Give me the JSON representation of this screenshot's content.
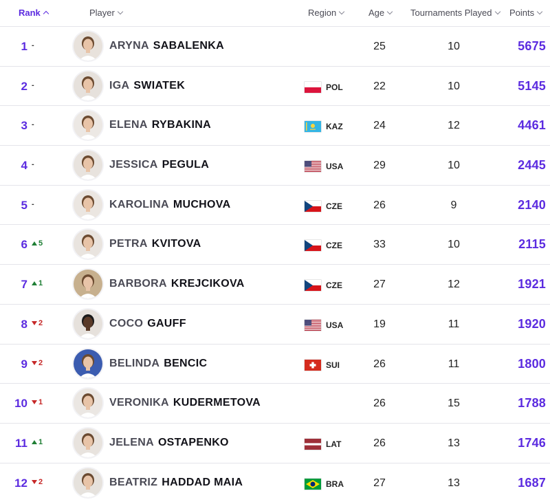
{
  "header": {
    "rank": "Rank",
    "player": "Player",
    "region": "Region",
    "age": "Age",
    "tournaments": "Tournaments Played",
    "points": "Points"
  },
  "rows": [
    {
      "rank": "1",
      "move": "-",
      "move_dir": "same",
      "first": "ARYNA",
      "last": "SABALENKA",
      "region": "",
      "flag": "",
      "age": "25",
      "tournaments": "10",
      "points": "5675",
      "avatar_bg": "#e8e2dc"
    },
    {
      "rank": "2",
      "move": "-",
      "move_dir": "same",
      "first": "IGA",
      "last": "SWIATEK",
      "region": "POL",
      "flag": "pol",
      "age": "22",
      "tournaments": "10",
      "points": "5145",
      "avatar_bg": "#e6e1dc"
    },
    {
      "rank": "3",
      "move": "-",
      "move_dir": "same",
      "first": "ELENA",
      "last": "RYBAKINA",
      "region": "KAZ",
      "flag": "kaz",
      "age": "24",
      "tournaments": "12",
      "points": "4461",
      "avatar_bg": "#ece8e4"
    },
    {
      "rank": "4",
      "move": "-",
      "move_dir": "same",
      "first": "JESSICA",
      "last": "PEGULA",
      "region": "USA",
      "flag": "usa",
      "age": "29",
      "tournaments": "10",
      "points": "2445",
      "avatar_bg": "#e8e3de"
    },
    {
      "rank": "5",
      "move": "-",
      "move_dir": "same",
      "first": "KAROLINA",
      "last": "MUCHOVA",
      "region": "CZE",
      "flag": "cze",
      "age": "26",
      "tournaments": "9",
      "points": "2140",
      "avatar_bg": "#ebe6e1"
    },
    {
      "rank": "6",
      "move": "5",
      "move_dir": "up",
      "first": "PETRA",
      "last": "KVITOVA",
      "region": "CZE",
      "flag": "cze",
      "age": "33",
      "tournaments": "10",
      "points": "2115",
      "avatar_bg": "#e9e4df"
    },
    {
      "rank": "7",
      "move": "1",
      "move_dir": "up",
      "first": "BARBORA",
      "last": "KREJCIKOVA",
      "region": "CZE",
      "flag": "cze",
      "age": "27",
      "tournaments": "12",
      "points": "1921",
      "avatar_bg": "#c7b08e"
    },
    {
      "rank": "8",
      "move": "2",
      "move_dir": "down",
      "first": "COCO",
      "last": "GAUFF",
      "region": "USA",
      "flag": "usa",
      "age": "19",
      "tournaments": "11",
      "points": "1920",
      "avatar_bg": "#e6e1dc"
    },
    {
      "rank": "9",
      "move": "2",
      "move_dir": "down",
      "first": "BELINDA",
      "last": "BENCIC",
      "region": "SUI",
      "flag": "sui",
      "age": "26",
      "tournaments": "11",
      "points": "1800",
      "avatar_bg": "#3b5cb0"
    },
    {
      "rank": "10",
      "move": "1",
      "move_dir": "down",
      "first": "VERONIKA",
      "last": "KUDERMETOVA",
      "region": "",
      "flag": "",
      "age": "26",
      "tournaments": "15",
      "points": "1788",
      "avatar_bg": "#ebe7e3"
    },
    {
      "rank": "11",
      "move": "1",
      "move_dir": "up",
      "first": "JELENA",
      "last": "OSTAPENKO",
      "region": "LAT",
      "flag": "lat",
      "age": "26",
      "tournaments": "13",
      "points": "1746",
      "avatar_bg": "#e8e3de"
    },
    {
      "rank": "12",
      "move": "2",
      "move_dir": "down",
      "first": "BEATRIZ",
      "last": "HADDAD MAIA",
      "region": "BRA",
      "flag": "bra",
      "age": "27",
      "tournaments": "13",
      "points": "1687",
      "avatar_bg": "#e6e2dd"
    }
  ],
  "colors": {
    "accent": "#5b2be0",
    "up": "#1e7e34",
    "down": "#c62828"
  }
}
